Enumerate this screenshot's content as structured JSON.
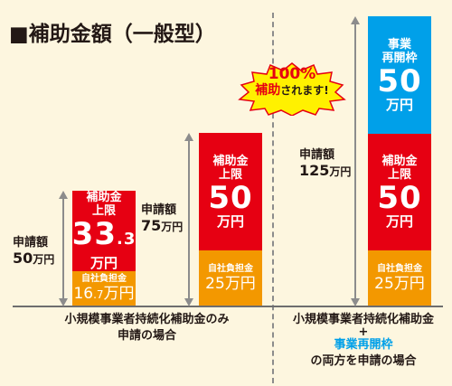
{
  "heading": "■補助金額（一般型）",
  "left": {
    "apply_label": "申請額",
    "apply_amount": "50",
    "apply_unit": "万円",
    "subsidy": {
      "line1": "補助金",
      "line2": "上限",
      "num_int": "33",
      "num_dec": ".3",
      "unit": "万円"
    },
    "own": {
      "label": "自社負担金",
      "amt_int": "16",
      "amt_dec": ".7",
      "unit": "万円"
    }
  },
  "middle": {
    "apply_label": "申請額",
    "apply_amount": "75",
    "apply_unit": "万円",
    "subsidy": {
      "line1": "補助金",
      "line2": "上限",
      "num": "50",
      "unit": "万円"
    },
    "own": {
      "label": "自社負担金",
      "amt": "25",
      "unit": "万円"
    }
  },
  "right": {
    "apply_label": "申請額",
    "apply_amount": "125",
    "apply_unit": "万円",
    "reopen": {
      "line1": "事業",
      "line2": "再開枠",
      "num": "50",
      "unit": "万円"
    },
    "subsidy": {
      "line1": "補助金",
      "line2": "上限",
      "num": "50",
      "unit": "万円"
    },
    "own": {
      "label": "自社負担金",
      "amt": "25",
      "unit": "万円"
    }
  },
  "burst": {
    "percent": "100%",
    "text_red": "補助",
    "text_rest": "されます!"
  },
  "captions": {
    "left_line1": "小規模事業者持続化補助金のみ",
    "left_line2": "申請の場合",
    "right_line1": "小規模事業者持続化補助金",
    "right_plus": "+",
    "right_line2": "事業再開枠",
    "right_line3": "の両方を申請の場合"
  },
  "colors": {
    "red": "#e60012",
    "orange": "#f39800",
    "blue": "#00a0e9",
    "background": "#fdf6df"
  }
}
